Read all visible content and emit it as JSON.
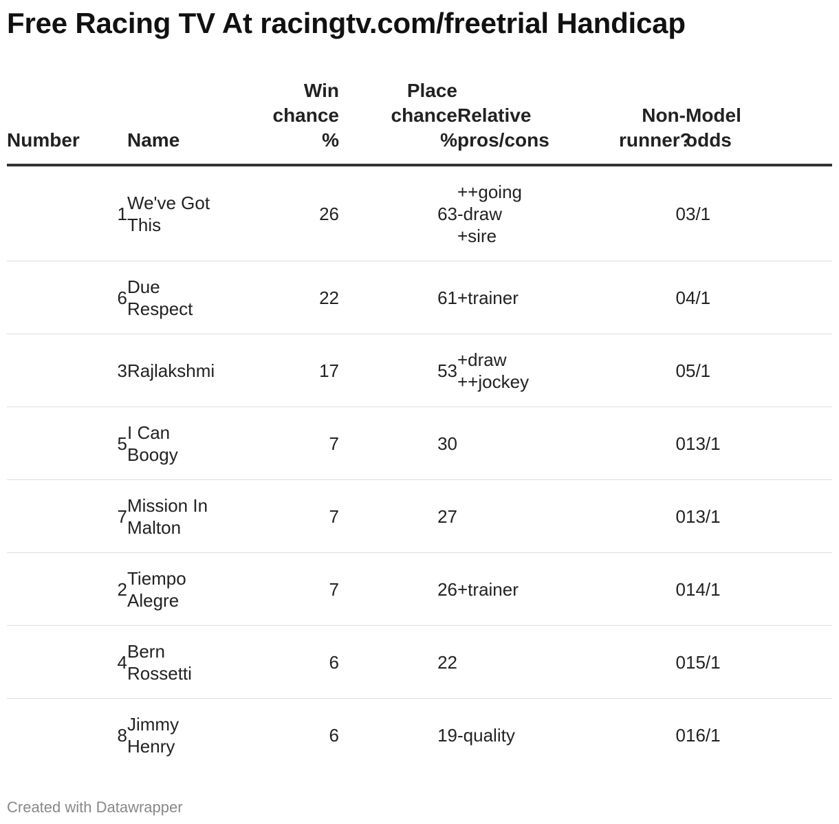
{
  "title": "Free Racing TV At racingtv.com/freetrial Handicap",
  "footer": "Created with Datawrapper",
  "chart_data": {
    "type": "table",
    "title": "Free Racing TV At racingtv.com/freetrial Handicap",
    "columns": [
      "Number",
      "Name",
      "Win\nchance\n%",
      "Place\nchance\n%",
      "Relative\npros/cons",
      "Non-\nrunner?",
      "Model\nodds"
    ],
    "rows": [
      {
        "number": "1",
        "name": "We've Got\nThis",
        "win": "26",
        "place": "63",
        "pros": "++going\n-draw\n+sire",
        "non_runner": "0",
        "odds": "3/1"
      },
      {
        "number": "6",
        "name": "Due\nRespect",
        "win": "22",
        "place": "61",
        "pros": "+trainer",
        "non_runner": "0",
        "odds": "4/1"
      },
      {
        "number": "3",
        "name": "Rajlakshmi",
        "win": "17",
        "place": "53",
        "pros": "+draw\n++jockey",
        "non_runner": "0",
        "odds": "5/1"
      },
      {
        "number": "5",
        "name": "I Can\nBoogy",
        "win": "7",
        "place": "30",
        "pros": "",
        "non_runner": "0",
        "odds": "13/1"
      },
      {
        "number": "7",
        "name": "Mission In\nMalton",
        "win": "7",
        "place": "27",
        "pros": "",
        "non_runner": "0",
        "odds": "13/1"
      },
      {
        "number": "2",
        "name": "Tiempo\nAlegre",
        "win": "7",
        "place": "26",
        "pros": "+trainer",
        "non_runner": "0",
        "odds": "14/1"
      },
      {
        "number": "4",
        "name": "Bern\nRossetti",
        "win": "6",
        "place": "22",
        "pros": "",
        "non_runner": "0",
        "odds": "15/1"
      },
      {
        "number": "8",
        "name": "Jimmy\nHenry",
        "win": "6",
        "place": "19",
        "pros": "-quality",
        "non_runner": "0",
        "odds": "16/1"
      }
    ]
  }
}
